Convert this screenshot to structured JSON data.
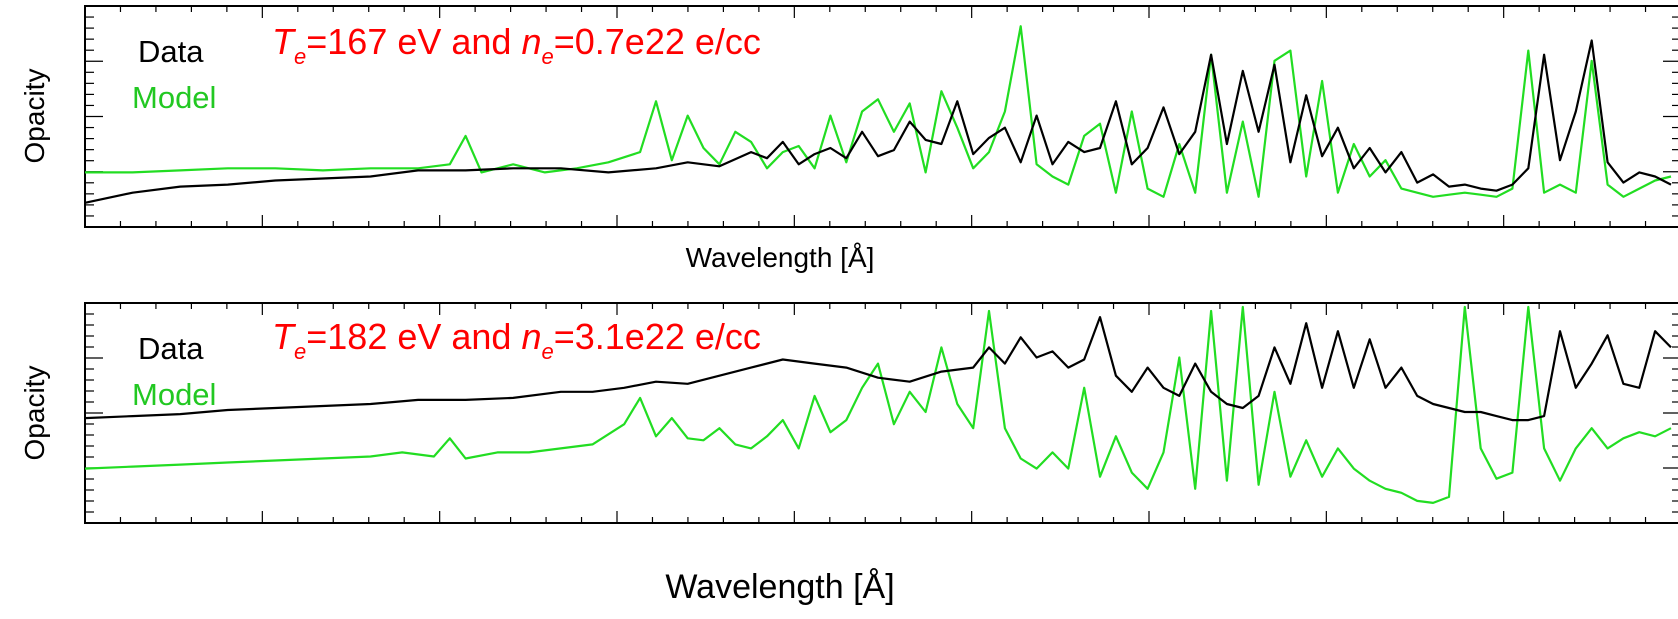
{
  "chart_data": [
    {
      "type": "line",
      "ylabel": "Opacity",
      "xlabel": "Wavelength [Å]",
      "annotation": {
        "te_symbol": "T",
        "te_sub": "e",
        "te_value": "=167 eV and ",
        "ne_symbol": "n",
        "ne_sub": "e",
        "ne_value": "=0.7e22 e/cc",
        "color": "#ff0000"
      },
      "grid": false,
      "legend_placement": "top-left",
      "xlim": [
        0,
        100
      ],
      "ylim": [
        0,
        100
      ],
      "series": [
        {
          "name": "Data",
          "color": "#000000",
          "x": [
            0,
            3,
            6,
            9,
            12,
            15,
            18,
            21,
            24,
            27,
            30,
            33,
            36,
            38,
            40,
            42,
            43,
            44,
            45,
            46,
            47,
            48,
            49,
            50,
            51,
            52,
            53,
            54,
            55,
            56,
            57,
            58,
            59,
            60,
            61,
            62,
            63,
            64,
            65,
            66,
            67,
            68,
            69,
            70,
            71,
            72,
            73,
            74,
            75,
            76,
            77,
            78,
            79,
            80,
            81,
            82,
            83,
            84,
            85,
            86,
            87,
            88,
            89,
            90,
            91,
            92,
            93,
            94,
            95,
            96,
            97,
            98,
            99,
            100
          ],
          "y": [
            5,
            10,
            13,
            14,
            16,
            17,
            18,
            21,
            21,
            22,
            22,
            20,
            22,
            25,
            23,
            30,
            27,
            35,
            24,
            29,
            32,
            27,
            40,
            28,
            31,
            45,
            36,
            34,
            55,
            29,
            37,
            42,
            25,
            48,
            24,
            35,
            30,
            32,
            55,
            24,
            32,
            52,
            29,
            40,
            78,
            34,
            70,
            40,
            73,
            25,
            58,
            28,
            42,
            22,
            32,
            20,
            30,
            15,
            19,
            13,
            14,
            12,
            11,
            14,
            22,
            78,
            26,
            50,
            85,
            25,
            15,
            20,
            18,
            14
          ]
        },
        {
          "name": "Model",
          "color": "#22dd22",
          "x": [
            0,
            3,
            6,
            9,
            12,
            15,
            18,
            21,
            23,
            24,
            25,
            27,
            29,
            31,
            33,
            35,
            36,
            37,
            38,
            39,
            40,
            41,
            42,
            43,
            44,
            45,
            46,
            47,
            48,
            49,
            50,
            51,
            52,
            53,
            54,
            55,
            56,
            57,
            58,
            59,
            60,
            61,
            62,
            63,
            64,
            65,
            66,
            67,
            68,
            69,
            70,
            71,
            72,
            73,
            74,
            75,
            76,
            77,
            78,
            79,
            80,
            81,
            82,
            83,
            84,
            85,
            86,
            87,
            88,
            89,
            90,
            91,
            92,
            93,
            94,
            95,
            96,
            97,
            98,
            99,
            100
          ],
          "y": [
            20,
            20,
            21,
            22,
            22,
            21,
            22,
            22,
            24,
            38,
            20,
            24,
            20,
            22,
            25,
            30,
            55,
            26,
            48,
            32,
            24,
            40,
            35,
            22,
            30,
            33,
            22,
            48,
            25,
            50,
            56,
            40,
            54,
            20,
            60,
            42,
            22,
            30,
            50,
            92,
            24,
            18,
            14,
            38,
            44,
            10,
            50,
            12,
            8,
            34,
            10,
            78,
            10,
            45,
            8,
            75,
            80,
            18,
            65,
            10,
            34,
            18,
            26,
            12,
            10,
            8,
            9,
            10,
            9,
            8,
            12,
            80,
            10,
            14,
            10,
            75,
            14,
            8,
            12,
            16,
            18
          ]
        }
      ]
    },
    {
      "type": "line",
      "ylabel": "Opacity",
      "xlabel": "Wavelength [Å]",
      "annotation": {
        "te_symbol": "T",
        "te_sub": "e",
        "te_value": "=182 eV and ",
        "ne_symbol": "n",
        "ne_sub": "e",
        "ne_value": "=3.1e22 e/cc",
        "color": "#ff0000"
      },
      "grid": false,
      "legend_placement": "top-left",
      "xlim": [
        0,
        100
      ],
      "ylim": [
        0,
        100
      ],
      "series": [
        {
          "name": "Data",
          "color": "#000000",
          "x": [
            0,
            3,
            6,
            9,
            12,
            15,
            18,
            21,
            24,
            27,
            30,
            32,
            34,
            36,
            38,
            40,
            42,
            44,
            46,
            48,
            50,
            52,
            54,
            56,
            57,
            58,
            59,
            60,
            61,
            62,
            63,
            64,
            65,
            66,
            67,
            68,
            69,
            70,
            71,
            72,
            73,
            74,
            75,
            76,
            77,
            78,
            79,
            80,
            81,
            82,
            83,
            84,
            85,
            86,
            87,
            88,
            89,
            90,
            91,
            92,
            93,
            94,
            95,
            96,
            97,
            98,
            99,
            100
          ],
          "y": [
            45,
            46,
            47,
            49,
            50,
            51,
            52,
            54,
            54,
            55,
            58,
            58,
            60,
            63,
            62,
            66,
            70,
            74,
            72,
            70,
            65,
            63,
            68,
            70,
            80,
            72,
            85,
            75,
            78,
            70,
            74,
            95,
            66,
            58,
            70,
            60,
            56,
            72,
            58,
            52,
            50,
            56,
            80,
            62,
            92,
            60,
            88,
            60,
            84,
            60,
            70,
            56,
            52,
            50,
            48,
            48,
            46,
            44,
            44,
            46,
            88,
            60,
            72,
            86,
            62,
            60,
            88,
            80
          ]
        },
        {
          "name": "Model",
          "color": "#22dd22",
          "x": [
            0,
            3,
            6,
            9,
            12,
            15,
            18,
            20,
            22,
            23,
            24,
            26,
            28,
            30,
            32,
            34,
            35,
            36,
            37,
            38,
            39,
            40,
            41,
            42,
            43,
            44,
            45,
            46,
            47,
            48,
            49,
            50,
            51,
            52,
            53,
            54,
            55,
            56,
            57,
            58,
            59,
            60,
            61,
            62,
            63,
            64,
            65,
            66,
            67,
            68,
            69,
            70,
            71,
            72,
            73,
            74,
            75,
            76,
            77,
            78,
            79,
            80,
            81,
            82,
            83,
            84,
            85,
            86,
            87,
            88,
            89,
            90,
            91,
            92,
            93,
            94,
            95,
            96,
            97,
            98,
            99,
            100
          ],
          "y": [
            20,
            21,
            22,
            23,
            24,
            25,
            26,
            28,
            26,
            35,
            25,
            28,
            28,
            30,
            32,
            42,
            55,
            36,
            45,
            35,
            34,
            40,
            32,
            30,
            36,
            44,
            30,
            56,
            38,
            44,
            60,
            72,
            42,
            58,
            48,
            80,
            52,
            40,
            98,
            40,
            25,
            20,
            28,
            20,
            60,
            16,
            36,
            18,
            10,
            28,
            75,
            10,
            98,
            14,
            100,
            12,
            58,
            16,
            34,
            16,
            30,
            20,
            14,
            10,
            8,
            4,
            3,
            6,
            100,
            30,
            15,
            18,
            100,
            30,
            14,
            30,
            40,
            30,
            35,
            38,
            36,
            40
          ]
        }
      ]
    }
  ]
}
